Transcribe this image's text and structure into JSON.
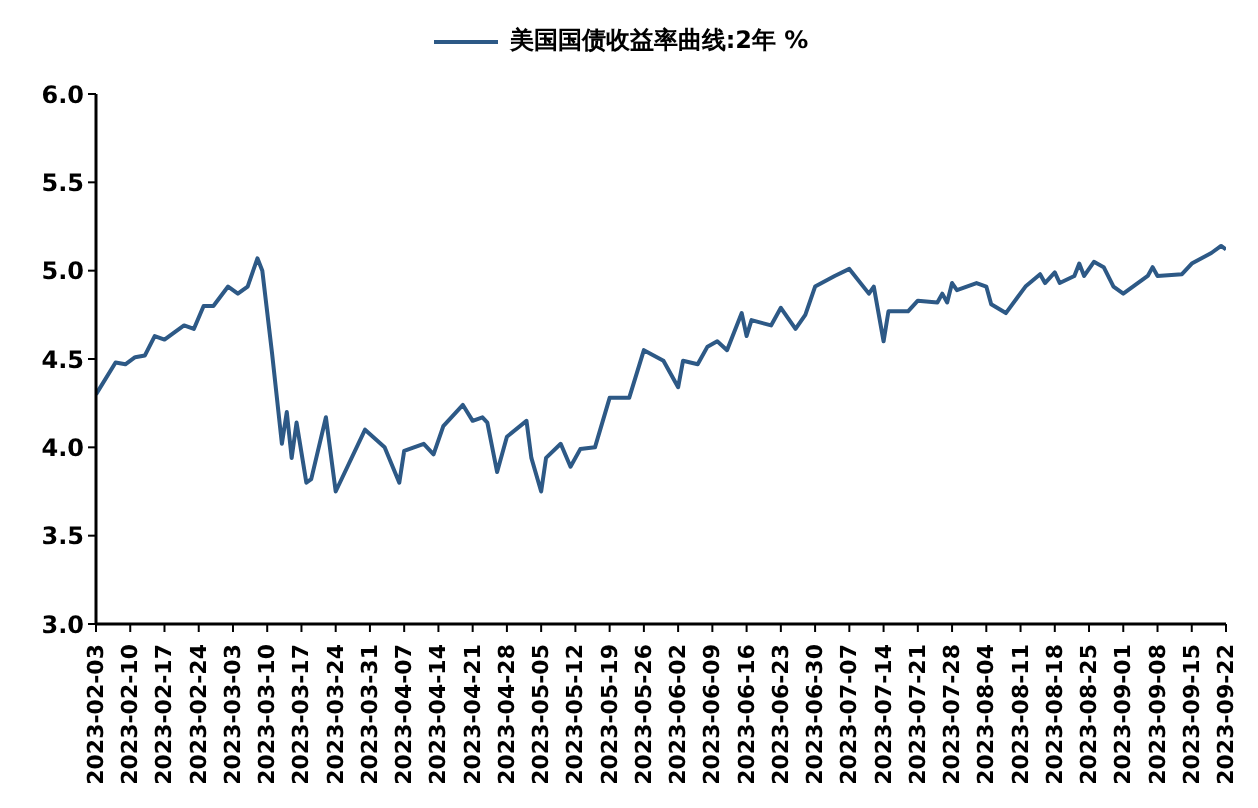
{
  "chart_data": {
    "type": "line",
    "legend": "top",
    "grid": false,
    "marker": "none",
    "line_style": "solid",
    "x": [
      "2023-02-03",
      "2023-02-07",
      "2023-02-09",
      "2023-02-11",
      "2023-02-13",
      "2023-02-15",
      "2023-02-17",
      "2023-02-21",
      "2023-02-23",
      "2023-02-25",
      "2023-02-27",
      "2023-03-02",
      "2023-03-04",
      "2023-03-06",
      "2023-03-08",
      "2023-03-09",
      "2023-03-11",
      "2023-03-13",
      "2023-03-14",
      "2023-03-15",
      "2023-03-16",
      "2023-03-18",
      "2023-03-19",
      "2023-03-22",
      "2023-03-24",
      "2023-03-30",
      "2023-04-03",
      "2023-04-06",
      "2023-04-07",
      "2023-04-11",
      "2023-04-13",
      "2023-04-15",
      "2023-04-19",
      "2023-04-21",
      "2023-04-23",
      "2023-04-24",
      "2023-04-26",
      "2023-04-28",
      "2023-05-02",
      "2023-05-03",
      "2023-05-05",
      "2023-05-06",
      "2023-05-09",
      "2023-05-11",
      "2023-05-13",
      "2023-05-16",
      "2023-05-19",
      "2023-05-23",
      "2023-05-26",
      "2023-05-30",
      "2023-06-02",
      "2023-06-03",
      "2023-06-06",
      "2023-06-08",
      "2023-06-10",
      "2023-06-12",
      "2023-06-15",
      "2023-06-16",
      "2023-06-17",
      "2023-06-21",
      "2023-06-23",
      "2023-06-26",
      "2023-06-28",
      "2023-06-30",
      "2023-07-04",
      "2023-07-07",
      "2023-07-11",
      "2023-07-12",
      "2023-07-14",
      "2023-07-15",
      "2023-07-19",
      "2023-07-21",
      "2023-07-25",
      "2023-07-26",
      "2023-07-27",
      "2023-07-28",
      "2023-07-29",
      "2023-08-02",
      "2023-08-04",
      "2023-08-05",
      "2023-08-08",
      "2023-08-12",
      "2023-08-15",
      "2023-08-16",
      "2023-08-18",
      "2023-08-19",
      "2023-08-22",
      "2023-08-23",
      "2023-08-24",
      "2023-08-26",
      "2023-08-28",
      "2023-08-30",
      "2023-09-01",
      "2023-09-06",
      "2023-09-07",
      "2023-09-08",
      "2023-09-13",
      "2023-09-15",
      "2023-09-19",
      "2023-09-21",
      "2023-09-22"
    ],
    "series": [
      {
        "name": "美国国债收益率曲线:2年 %",
        "color": "#2d5986",
        "values": [
          4.3,
          4.48,
          4.47,
          4.51,
          4.52,
          4.63,
          4.61,
          4.69,
          4.67,
          4.8,
          4.8,
          4.91,
          4.87,
          4.91,
          5.07,
          5.0,
          4.53,
          4.02,
          4.2,
          3.94,
          4.14,
          3.8,
          3.82,
          4.17,
          3.75,
          4.1,
          4.0,
          3.8,
          3.98,
          4.02,
          3.96,
          4.12,
          4.24,
          4.15,
          4.17,
          4.14,
          3.86,
          4.06,
          4.15,
          3.94,
          3.75,
          3.94,
          4.02,
          3.89,
          3.99,
          4.0,
          4.28,
          4.28,
          4.55,
          4.49,
          4.34,
          4.49,
          4.47,
          4.57,
          4.6,
          4.55,
          4.76,
          4.63,
          4.72,
          4.69,
          4.79,
          4.67,
          4.75,
          4.91,
          4.97,
          5.01,
          4.87,
          4.91,
          4.6,
          4.77,
          4.77,
          4.83,
          4.82,
          4.87,
          4.82,
          4.93,
          4.89,
          4.93,
          4.91,
          4.81,
          4.76,
          4.91,
          4.98,
          4.93,
          4.99,
          4.93,
          4.97,
          5.04,
          4.97,
          5.05,
          5.02,
          4.91,
          4.87,
          4.97,
          5.02,
          4.97,
          4.98,
          5.04,
          5.1,
          5.14,
          5.12
        ]
      }
    ],
    "ylim": [
      3,
      6
    ],
    "yticks": [
      {
        "value": 3,
        "label": "3.0"
      },
      {
        "value": 3.5,
        "label": "3.5"
      },
      {
        "value": 4,
        "label": "4.0"
      },
      {
        "value": 4.5,
        "label": "4.5"
      },
      {
        "value": 5,
        "label": "5.0"
      },
      {
        "value": 5.5,
        "label": "5.5"
      },
      {
        "value": 6,
        "label": "6.0"
      }
    ],
    "xlim": [
      "2023-02-03",
      "2023-09-22"
    ],
    "xticks": [
      "2023-02-03",
      "2023-02-10",
      "2023-02-17",
      "2023-02-24",
      "2023-03-03",
      "2023-03-10",
      "2023-03-17",
      "2023-03-24",
      "2023-03-31",
      "2023-04-07",
      "2023-04-14",
      "2023-04-21",
      "2023-04-28",
      "2023-05-05",
      "2023-05-12",
      "2023-05-19",
      "2023-05-26",
      "2023-06-02",
      "2023-06-09",
      "2023-06-16",
      "2023-06-23",
      "2023-06-30",
      "2023-07-07",
      "2023-07-14",
      "2023-07-21",
      "2023-07-28",
      "2023-08-04",
      "2023-08-11",
      "2023-08-18",
      "2023-08-25",
      "2023-09-01",
      "2023-09-08",
      "2023-09-15",
      "2023-09-22"
    ]
  }
}
